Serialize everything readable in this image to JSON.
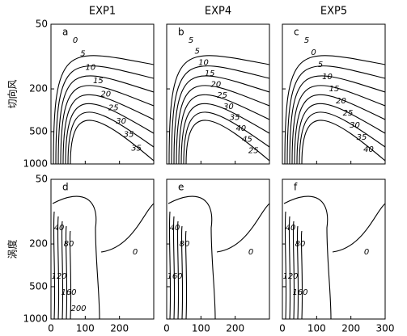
{
  "columns": [
    "EXP1",
    "EXP4",
    "EXP5"
  ],
  "rows": [
    "切向风",
    "涡度"
  ],
  "panels": [
    {
      "label": "a",
      "contour_labels": [
        0,
        5,
        10,
        15,
        20,
        25,
        30,
        35,
        35
      ]
    },
    {
      "label": "b",
      "contour_labels": [
        5,
        5,
        10,
        15,
        20,
        25,
        30,
        35,
        40,
        45,
        25
      ]
    },
    {
      "label": "c",
      "contour_labels": [
        5,
        0,
        5,
        10,
        15,
        20,
        25,
        30,
        35,
        40
      ]
    },
    {
      "label": "d",
      "contour_labels": [
        40,
        80,
        0,
        120,
        160,
        200
      ]
    },
    {
      "label": "e",
      "contour_labels": [
        40,
        80,
        0,
        160
      ]
    },
    {
      "label": "f",
      "contour_labels": [
        40,
        80,
        0,
        120,
        160
      ]
    }
  ],
  "ylim": [
    50,
    1000
  ],
  "yticks": [
    50,
    200,
    500,
    1000
  ],
  "xlim": [
    0,
    300
  ],
  "xticks": [
    0,
    100,
    200,
    300
  ]
}
